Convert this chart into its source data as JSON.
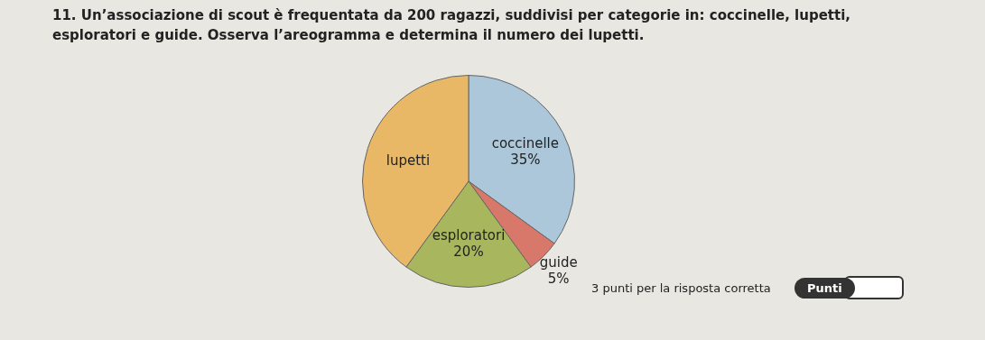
{
  "chart_data": {
    "type": "pie",
    "title": "11. Un’associazione di scout è frequentata da 200 ragazzi, suddivisi per categorie in: coccinelle, lupetti, esploratori e guide. Osserva l’areogramma e determina il numero dei lupetti.",
    "categories": [
      "coccinelle",
      "guide",
      "esploratori",
      "lupetti"
    ],
    "values": [
      35,
      5,
      20,
      40
    ],
    "value_labels": [
      "35%",
      "5%",
      "20%",
      null
    ],
    "colors": [
      "#abc7d9",
      "#d8786a",
      "#a8b75e",
      "#e8b866"
    ],
    "annotations": [
      "3 punti per la risposta corretta",
      "Punti"
    ],
    "legend": false
  }
}
